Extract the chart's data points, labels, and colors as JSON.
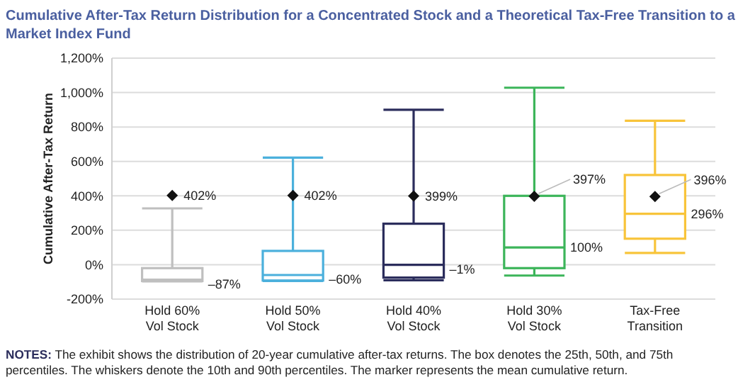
{
  "chart_data": {
    "type": "box",
    "title": "Cumulative After-Tax Return Distribution for a Concentrated Stock and a Theoretical Tax-Free Transition to a Market Index Fund",
    "ylabel": "Cumulative After-Tax Return",
    "categories": [
      "Hold 60% Vol Stock",
      "Hold 50% Vol Stock",
      "Hold 40% Vol Stock",
      "Hold 30% Vol Stock",
      "Tax-Free Transition"
    ],
    "colors": [
      "#bfbfbf",
      "#4bb0dc",
      "#2b2d5c",
      "#3cb55a",
      "#f8c43a"
    ],
    "boxes": [
      {
        "low": -97,
        "q1": -95,
        "median": -87,
        "q3": -20,
        "high": 327,
        "mean": 402
      },
      {
        "low": -95,
        "q1": -92,
        "median": -60,
        "q3": 80,
        "high": 622,
        "mean": 402
      },
      {
        "low": -90,
        "q1": -75,
        "median": -1,
        "q3": 238,
        "high": 900,
        "mean": 399
      },
      {
        "low": -63,
        "q1": -20,
        "median": 100,
        "q3": 400,
        "high": 1028,
        "mean": 397
      },
      {
        "low": 68,
        "q1": 151,
        "median": 296,
        "q3": 521,
        "high": 836,
        "mean": 396
      }
    ],
    "marker": "diamond",
    "ylim": [
      -200,
      1200
    ],
    "yticks": [
      {
        "value": -200,
        "label": "-200%"
      },
      {
        "value": 0,
        "label": "0%"
      },
      {
        "value": 200,
        "label": "200%"
      },
      {
        "value": 400,
        "label": "400%"
      },
      {
        "value": 600,
        "label": "600%"
      },
      {
        "value": 800,
        "label": "800%"
      },
      {
        "value": 1000,
        "label": "1,000%"
      },
      {
        "value": 1200,
        "label": "1,200%"
      }
    ],
    "grid": "y",
    "annotations": [
      "402%",
      {
        "text": "–87%",
        "x": "Hold 60% Vol Stock",
        "y": -87
      },
      {
        "text": "402%",
        "x": "Hold 50% Vol Stock",
        "y": 402
      },
      {
        "text": "–60%",
        "x": "Hold 50% Vol Stock",
        "y": -60
      },
      {
        "text": "399%",
        "x": "Hold 40% Vol Stock",
        "y": 399
      },
      {
        "text": "–1%",
        "x": "Hold 40% Vol Stock",
        "y": -1
      },
      {
        "text": "397%",
        "x": "Hold 30% Vol Stock",
        "y": 397
      },
      {
        "text": "100%",
        "x": "Hold 30% Vol Stock",
        "y": 100
      },
      "396%",
      {
        "text": "296%",
        "x": "Tax-Free Transition",
        "y": 296
      },
      "NOTES: The exhibit shows the distribution of 20-year cumulative after-tax returns. The box denotes the 25th, 50th, and 75th percentiles. The whiskers denote the 10th and 90th percentiles. The marker represents the mean cumulative return."
    ]
  }
}
